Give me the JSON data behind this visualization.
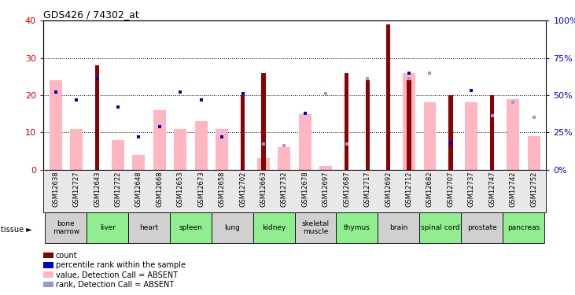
{
  "title": "GDS426 / 74302_at",
  "samples": [
    "GSM12638",
    "GSM12727",
    "GSM12643",
    "GSM12722",
    "GSM12648",
    "GSM12668",
    "GSM12653",
    "GSM12673",
    "GSM12658",
    "GSM12702",
    "GSM12663",
    "GSM12732",
    "GSM12678",
    "GSM12697",
    "GSM12687",
    "GSM12717",
    "GSM12692",
    "GSM12712",
    "GSM12682",
    "GSM12707",
    "GSM12737",
    "GSM12747",
    "GSM12742",
    "GSM12752"
  ],
  "tissues": [
    {
      "name": "bone\nmarrow",
      "start": 0,
      "end": 2,
      "color": "#d0d0d0"
    },
    {
      "name": "liver",
      "start": 2,
      "end": 4,
      "color": "#90ee90"
    },
    {
      "name": "heart",
      "start": 4,
      "end": 6,
      "color": "#d0d0d0"
    },
    {
      "name": "spleen",
      "start": 6,
      "end": 8,
      "color": "#90ee90"
    },
    {
      "name": "lung",
      "start": 8,
      "end": 10,
      "color": "#d0d0d0"
    },
    {
      "name": "kidney",
      "start": 10,
      "end": 12,
      "color": "#90ee90"
    },
    {
      "name": "skeletal\nmuscle",
      "start": 12,
      "end": 14,
      "color": "#d0d0d0"
    },
    {
      "name": "thymus",
      "start": 14,
      "end": 16,
      "color": "#90ee90"
    },
    {
      "name": "brain",
      "start": 16,
      "end": 18,
      "color": "#d0d0d0"
    },
    {
      "name": "spinal cord",
      "start": 18,
      "end": 20,
      "color": "#90ee90"
    },
    {
      "name": "prostate",
      "start": 20,
      "end": 22,
      "color": "#d0d0d0"
    },
    {
      "name": "pancreas",
      "start": 22,
      "end": 24,
      "color": "#90ee90"
    }
  ],
  "count_values": [
    0,
    0,
    28,
    0,
    0,
    0,
    0,
    0,
    0,
    20,
    26,
    0,
    0,
    0,
    26,
    24,
    39,
    24,
    0,
    20,
    0,
    20,
    0,
    0
  ],
  "absent_value_bars": [
    24,
    11,
    0,
    8,
    4,
    16,
    11,
    13,
    11,
    0,
    3,
    6,
    15,
    1,
    0,
    0,
    0,
    26,
    18,
    0,
    18,
    0,
    19,
    9
  ],
  "percentile_rank_pct": [
    52,
    47,
    61,
    42,
    22,
    29,
    52,
    47,
    22,
    51,
    null,
    null,
    38,
    null,
    null,
    null,
    null,
    65,
    null,
    18,
    53,
    null,
    null,
    null
  ],
  "absent_rank_pct": [
    null,
    null,
    null,
    null,
    null,
    null,
    null,
    null,
    null,
    null,
    17,
    16,
    null,
    51,
    17,
    61,
    null,
    61,
    65,
    null,
    null,
    36,
    45,
    35
  ],
  "count_color": "#8b0000",
  "absent_value_color": "#ffb6c1",
  "percentile_color": "#0000cd",
  "absent_rank_color": "#9999cc",
  "ylim_left": [
    0,
    40
  ],
  "ylim_right": [
    0,
    100
  ],
  "yticks_left": [
    0,
    10,
    20,
    30,
    40
  ],
  "yticks_right": [
    0,
    25,
    50,
    75,
    100
  ],
  "left_tick_color": "#cc0000",
  "right_tick_color": "#0000cc"
}
